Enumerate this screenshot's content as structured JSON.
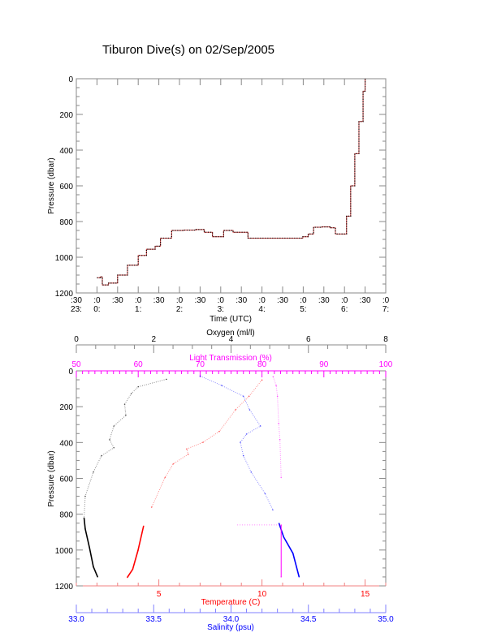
{
  "title": "Tiburon Dive(s) on 02/Sep/2005",
  "colors": {
    "black": "#000000",
    "red": "#ff0000",
    "blue": "#0000ff",
    "magenta": "#ff00ff",
    "frame": "#888888"
  },
  "chart_data": [
    {
      "type": "line",
      "name": "dive-track",
      "xlabel": "Time (UTC)",
      "ylabel": "Pressure (dbar)",
      "xlim_hours_from_0000": [
        -0.5,
        7
      ],
      "ylim": [
        1200,
        0
      ],
      "yticks": [
        "0",
        "200",
        "400",
        "600",
        "800",
        "1000",
        "1200"
      ],
      "xticks": [
        {
          "min": ":30",
          "hr": "23:"
        },
        {
          "min": ":0",
          "hr": "0:"
        },
        {
          "min": ":30",
          "hr": ""
        },
        {
          "min": ":0",
          "hr": "1:"
        },
        {
          "min": ":30",
          "hr": ""
        },
        {
          "min": ":0",
          "hr": "2:"
        },
        {
          "min": ":30",
          "hr": ""
        },
        {
          "min": ":0",
          "hr": "3:"
        },
        {
          "min": ":30",
          "hr": ""
        },
        {
          "min": ":0",
          "hr": "4:"
        },
        {
          "min": ":30",
          "hr": ""
        },
        {
          "min": ":0",
          "hr": "5:"
        },
        {
          "min": ":30",
          "hr": ""
        },
        {
          "min": ":0",
          "hr": "6:"
        },
        {
          "min": ":30",
          "hr": ""
        },
        {
          "min": ":0",
          "hr": "7:"
        }
      ],
      "x": [
        0,
        0.08,
        0.13,
        0.28,
        0.5,
        0.74,
        1.0,
        1.2,
        1.41,
        1.54,
        1.81,
        2.1,
        2.4,
        2.6,
        2.8,
        3.07,
        3.3,
        3.66,
        4.0,
        4.46,
        4.99,
        5.12,
        5.25,
        5.45,
        5.65,
        5.78,
        5.98,
        6.05,
        6.15,
        6.25,
        6.35,
        6.45,
        6.5
      ],
      "y": [
        1115,
        1110,
        1155,
        1145,
        1100,
        1045,
        990,
        955,
        938,
        893,
        850,
        848,
        845,
        860,
        885,
        850,
        860,
        893,
        893,
        893,
        885,
        870,
        832,
        830,
        835,
        870,
        870,
        770,
        600,
        420,
        240,
        70,
        0
      ]
    },
    {
      "type": "line",
      "name": "profiles",
      "ylabel": "Pressure (dbar)",
      "ylim": [
        1200,
        0
      ],
      "yticks": [
        "0",
        "200",
        "400",
        "600",
        "800",
        "1000",
        "1200"
      ],
      "axes": {
        "oxygen": {
          "label": "Oxygen (ml/l)",
          "range": [
            0,
            8
          ],
          "ticks": [
            "0",
            "2",
            "4",
            "6",
            "8"
          ]
        },
        "light": {
          "label": "Light Transmission (%)",
          "range": [
            50,
            100
          ],
          "ticks": [
            "50",
            "60",
            "70",
            "80",
            "90",
            "100"
          ]
        },
        "temperature": {
          "label": "Temperature (C)",
          "range": [
            1,
            16
          ],
          "ticks": [
            "5",
            "10",
            "15"
          ]
        },
        "salinity": {
          "label": "Salinity (psu)",
          "range": [
            33,
            35
          ],
          "ticks": [
            "33.0",
            "33.5",
            "34.0",
            "34.5",
            "35.0"
          ]
        }
      },
      "series": [
        {
          "name": "Oxygen",
          "axis": "oxygen",
          "color": "#000000",
          "pressure": [
            47,
            89,
            127,
            187,
            248,
            308,
            384,
            429,
            474,
            565,
            700,
            821,
            882,
            987,
            1093,
            1150
          ],
          "values": [
            2.33,
            1.6,
            1.42,
            1.25,
            1.28,
            0.97,
            0.86,
            0.97,
            0.65,
            0.44,
            0.23,
            0.2,
            0.23,
            0.34,
            0.44,
            0.55
          ]
        },
        {
          "name": "Temperature",
          "axis": "temperature",
          "color": "#ff0000",
          "pressure": [
            51,
            142,
            217,
            338,
            399,
            436,
            466,
            519,
            595,
            761,
            866,
            1002,
            1108,
            1153
          ],
          "values": [
            10.0,
            9.37,
            8.72,
            7.93,
            7.14,
            6.35,
            6.42,
            5.7,
            5.3,
            4.65,
            4.26,
            3.99,
            3.73,
            3.47
          ]
        },
        {
          "name": "Salinity",
          "axis": "salinity",
          "color": "#0000ff",
          "pressure": [
            29,
            82,
            142,
            217,
            308,
            353,
            399,
            474,
            565,
            685,
            776,
            851,
            927,
            1018,
            1150
          ],
          "values": [
            33.8,
            33.94,
            34.08,
            34.12,
            34.19,
            34.1,
            34.06,
            34.08,
            34.13,
            34.22,
            34.27,
            34.31,
            34.34,
            34.4,
            34.44
          ]
        },
        {
          "name": "Light Transmission",
          "axis": "light",
          "color": "#ff00ff",
          "pressure": [
            33,
            82,
            142,
            293,
            384,
            595,
            860,
            1150
          ],
          "values": [
            81.8,
            82.3,
            82.5,
            82.7,
            82.9,
            83.1,
            83.1,
            83.1
          ]
        }
      ]
    }
  ]
}
